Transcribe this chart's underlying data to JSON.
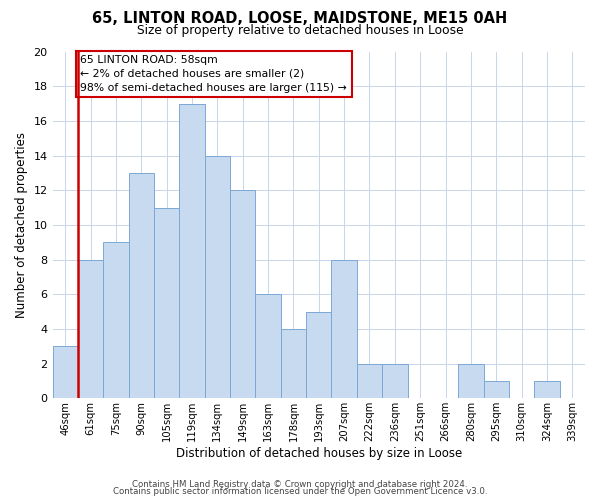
{
  "title": "65, LINTON ROAD, LOOSE, MAIDSTONE, ME15 0AH",
  "subtitle": "Size of property relative to detached houses in Loose",
  "xlabel": "Distribution of detached houses by size in Loose",
  "ylabel": "Number of detached properties",
  "bar_color": "#c8daf0",
  "bar_edge_color": "#7ba8d4",
  "highlight_color": "#cc0000",
  "bin_labels": [
    "46sqm",
    "61sqm",
    "75sqm",
    "90sqm",
    "105sqm",
    "119sqm",
    "134sqm",
    "149sqm",
    "163sqm",
    "178sqm",
    "193sqm",
    "207sqm",
    "222sqm",
    "236sqm",
    "251sqm",
    "266sqm",
    "280sqm",
    "295sqm",
    "310sqm",
    "324sqm",
    "339sqm"
  ],
  "bar_heights": [
    3,
    8,
    9,
    13,
    11,
    17,
    14,
    12,
    6,
    4,
    5,
    8,
    2,
    2,
    0,
    0,
    2,
    1,
    0,
    1,
    0
  ],
  "ylim": [
    0,
    20
  ],
  "yticks": [
    0,
    2,
    4,
    6,
    8,
    10,
    12,
    14,
    16,
    18,
    20
  ],
  "annotation_title": "65 LINTON ROAD: 58sqm",
  "annotation_line1": "← 2% of detached houses are smaller (2)",
  "annotation_line2": "98% of semi-detached houses are larger (115) →",
  "footer1": "Contains HM Land Registry data © Crown copyright and database right 2024.",
  "footer2": "Contains public sector information licensed under the Open Government Licence v3.0.",
  "background_color": "#ffffff",
  "grid_color": "#c8d4e8"
}
